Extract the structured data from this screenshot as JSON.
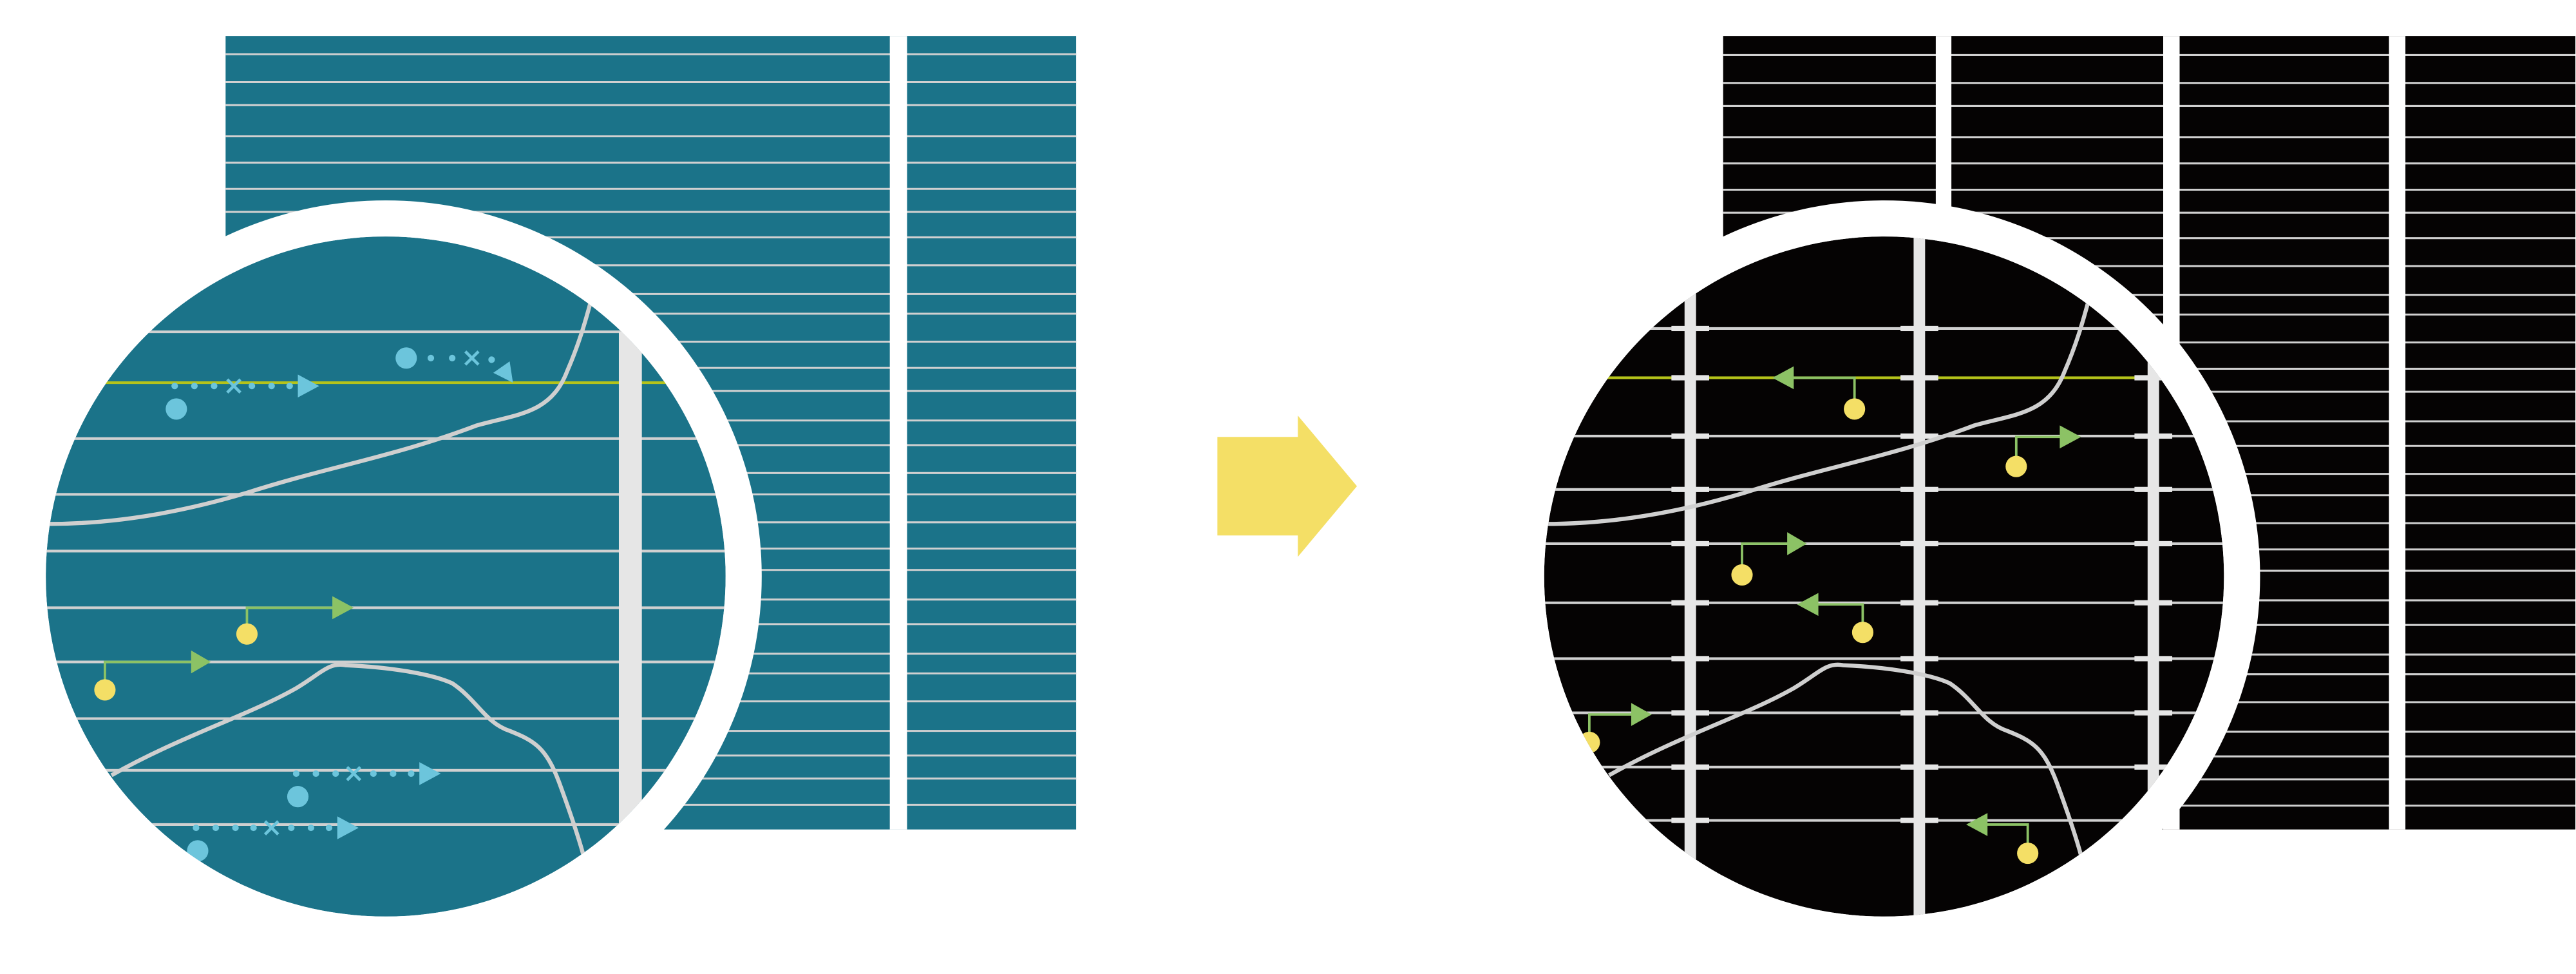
{
  "diagram": {
    "kind": "before-after transformation with magnified inset",
    "colors": {
      "before_background": "#1b7389",
      "after_background": "#050303",
      "grid_lines": "#d0d0d0",
      "vertical_bars": "#e6e6e6",
      "transition_arrow": "#f4df66",
      "yellow_nodes": "#f4df66",
      "green_arrows": "#8cc265",
      "blue_dotted_paths": "#6cc5dc",
      "highlight_line": "#b5c31a",
      "curves": "#cfcfcf"
    },
    "icons": {
      "transition": "right-arrow-icon",
      "magnifier": "magnifier-circle-icon"
    },
    "before_panel": {
      "columns": 2
    },
    "after_panel": {
      "columns": 4
    }
  }
}
